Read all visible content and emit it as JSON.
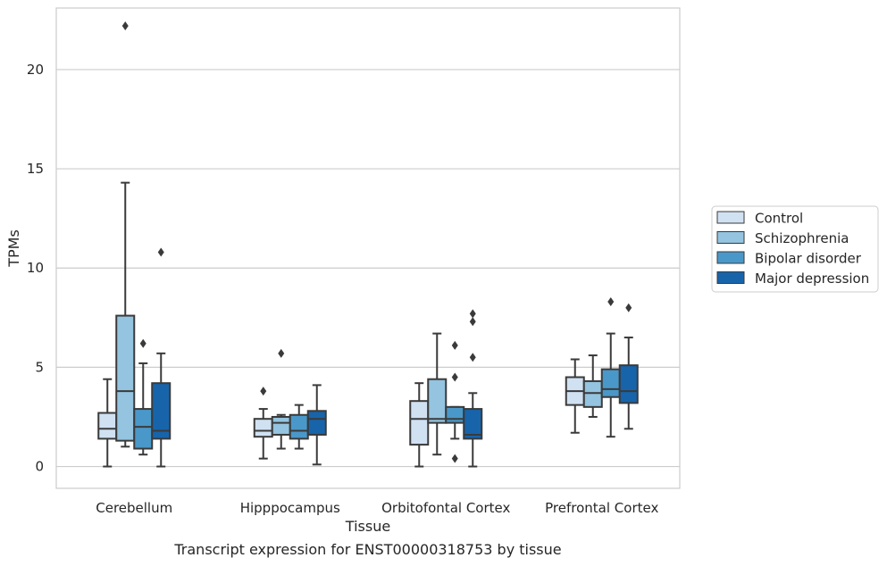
{
  "chart_data": {
    "type": "box",
    "title": "",
    "caption": "Transcript expression for ENST00000318753 by tissue",
    "xlabel": "Tissue",
    "ylabel": "TPMs",
    "ylim": [
      -1.1,
      23.1
    ],
    "yticks": [
      0,
      5,
      10,
      15,
      20
    ],
    "grid": "horizontal",
    "legend_position": "right",
    "categories": [
      "Cerebellum",
      "Hipppocampus",
      "Orbitofontal Cortex",
      "Prefrontal Cortex"
    ],
    "series": [
      {
        "name": "Control",
        "color": "#d0e1f2",
        "boxes": [
          {
            "whislo": 0.0,
            "q1": 1.4,
            "med": 1.9,
            "q3": 2.7,
            "whishi": 4.4,
            "fliers": []
          },
          {
            "whislo": 0.4,
            "q1": 1.5,
            "med": 1.8,
            "q3": 2.4,
            "whishi": 2.9,
            "fliers": [
              3.8
            ]
          },
          {
            "whislo": 0.0,
            "q1": 1.1,
            "med": 2.4,
            "q3": 3.3,
            "whishi": 4.2,
            "fliers": []
          },
          {
            "whislo": 1.7,
            "q1": 3.1,
            "med": 3.8,
            "q3": 4.5,
            "whishi": 5.4,
            "fliers": []
          }
        ]
      },
      {
        "name": "Schizophrenia",
        "color": "#94c4df",
        "boxes": [
          {
            "whislo": 1.0,
            "q1": 1.3,
            "med": 3.8,
            "q3": 7.6,
            "whishi": 14.3,
            "fliers": [
              22.2
            ]
          },
          {
            "whislo": 0.9,
            "q1": 1.6,
            "med": 2.2,
            "q3": 2.5,
            "whishi": 2.6,
            "fliers": [
              5.7
            ]
          },
          {
            "whislo": 0.6,
            "q1": 2.2,
            "med": 2.4,
            "q3": 4.4,
            "whishi": 6.7,
            "fliers": []
          },
          {
            "whislo": 2.5,
            "q1": 3.0,
            "med": 3.7,
            "q3": 4.3,
            "whishi": 5.6,
            "fliers": []
          }
        ]
      },
      {
        "name": "Bipolar disorder",
        "color": "#4a98c9",
        "boxes": [
          {
            "whislo": 0.6,
            "q1": 0.9,
            "med": 2.0,
            "q3": 2.9,
            "whishi": 5.2,
            "fliers": [
              6.2
            ]
          },
          {
            "whislo": 0.9,
            "q1": 1.4,
            "med": 1.8,
            "q3": 2.6,
            "whishi": 3.1,
            "fliers": []
          },
          {
            "whislo": 1.4,
            "q1": 2.2,
            "med": 2.4,
            "q3": 3.0,
            "whishi": 3.0,
            "fliers": [
              4.5,
              6.1,
              0.4
            ]
          },
          {
            "whislo": 1.5,
            "q1": 3.5,
            "med": 3.9,
            "q3": 4.9,
            "whishi": 6.7,
            "fliers": [
              8.3
            ]
          }
        ]
      },
      {
        "name": "Major depression",
        "color": "#1764ab",
        "boxes": [
          {
            "whislo": 0.0,
            "q1": 1.4,
            "med": 1.8,
            "q3": 4.2,
            "whishi": 5.7,
            "fliers": [
              10.8
            ]
          },
          {
            "whislo": 0.1,
            "q1": 1.6,
            "med": 2.4,
            "q3": 2.8,
            "whishi": 4.1,
            "fliers": []
          },
          {
            "whislo": 0.0,
            "q1": 1.4,
            "med": 1.6,
            "q3": 2.9,
            "whishi": 3.7,
            "fliers": [
              5.5,
              7.3,
              7.7
            ]
          },
          {
            "whislo": 1.9,
            "q1": 3.2,
            "med": 3.8,
            "q3": 5.1,
            "whishi": 6.5,
            "fliers": [
              8.0
            ]
          }
        ]
      }
    ]
  }
}
